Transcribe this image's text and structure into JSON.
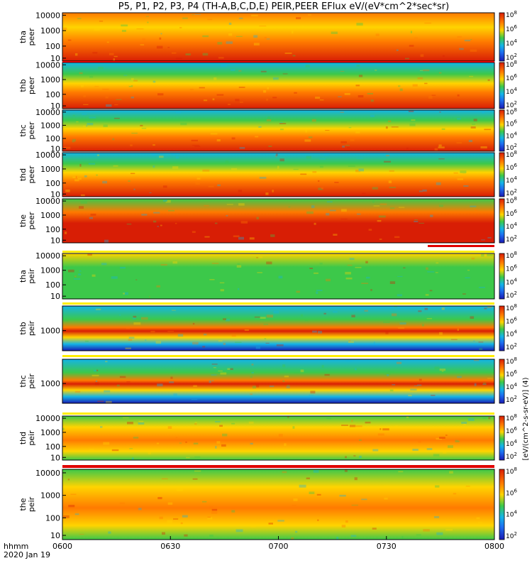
{
  "title": "P5, P1, P2, P3, P4 (TH-A,B,C,D,E) PEIR,PEER EFlux eV/(eV*cm^2*sec*sr)",
  "time_label_1": "hhmm",
  "time_label_2": "2020 Jan 19",
  "colorbar_unit_label": "[eV/(cm^2-s-sr-eV)] (4)",
  "colors": {
    "high": "#d81e05",
    "mid_high": "#ff7a00",
    "mid": "#ffd400",
    "mid_low": "#3cc84a",
    "low": "#14b4e6",
    "lowest": "#1a1ab4",
    "bar_red": "#e00000",
    "bar_yellow": "#ffee00"
  },
  "chart_data": [
    {
      "type": "heatmap",
      "panel": "tha peer",
      "ylabel": [
        "tha",
        "peer"
      ],
      "yscale": "log",
      "yticks": [
        "10000",
        "1000",
        "100",
        "10"
      ],
      "colorbar_ticks": [
        "10^8",
        "10^6",
        "10^4",
        "10^2"
      ],
      "xlim": [
        "0600",
        "0800"
      ]
    },
    {
      "type": "heatmap",
      "panel": "thb peer",
      "ylabel": [
        "thb",
        "peer"
      ],
      "yscale": "log",
      "yticks": [
        "10000",
        "1000",
        "100",
        "10"
      ],
      "colorbar_ticks": [
        "10^8",
        "10^6",
        "10^4",
        "10^2"
      ],
      "xlim": [
        "0600",
        "0800"
      ]
    },
    {
      "type": "heatmap",
      "panel": "thc peer",
      "ylabel": [
        "thc",
        "peer"
      ],
      "yscale": "log",
      "yticks": [
        "10000",
        "1000",
        "100",
        "10"
      ],
      "colorbar_ticks": [
        "10^8",
        "10^6",
        "10^4",
        "10^2"
      ],
      "xlim": [
        "0600",
        "0800"
      ]
    },
    {
      "type": "heatmap",
      "panel": "thd peer",
      "ylabel": [
        "thd",
        "peer"
      ],
      "yscale": "log",
      "yticks": [
        "10000",
        "1000",
        "100",
        "10"
      ],
      "colorbar_ticks": [
        "10^8",
        "10^6",
        "10^4",
        "10^2"
      ],
      "xlim": [
        "0600",
        "0800"
      ]
    },
    {
      "type": "heatmap",
      "panel": "the peer",
      "ylabel": [
        "the",
        "peer"
      ],
      "yscale": "log",
      "yticks": [
        "10000",
        "1000",
        "100",
        "10"
      ],
      "colorbar_ticks": [
        "10^8",
        "10^6",
        "10^4",
        "10^2"
      ],
      "xlim": [
        "0600",
        "0800"
      ]
    },
    {
      "type": "heatmap",
      "panel": "tha peir",
      "ylabel": [
        "tha",
        "peir"
      ],
      "yscale": "log",
      "yticks": [
        "10000",
        "1000",
        "100",
        "10"
      ],
      "colorbar_ticks": [
        "10^8",
        "10^6",
        "10^4",
        "10^2"
      ],
      "xlim": [
        "0600",
        "0800"
      ]
    },
    {
      "type": "heatmap",
      "panel": "thb peir",
      "ylabel": [
        "thb",
        "peir"
      ],
      "yscale": "log",
      "yticks": [
        "1000"
      ],
      "colorbar_ticks": [
        "10^8",
        "10^6",
        "10^4",
        "10^2"
      ],
      "xlim": [
        "0600",
        "0800"
      ]
    },
    {
      "type": "heatmap",
      "panel": "thc peir",
      "ylabel": [
        "thc",
        "peir"
      ],
      "yscale": "log",
      "yticks": [
        "1000"
      ],
      "colorbar_ticks": [
        "10^8",
        "10^6",
        "10^4",
        "10^2"
      ],
      "xlim": [
        "0600",
        "0800"
      ]
    },
    {
      "type": "heatmap",
      "panel": "thd peir",
      "ylabel": [
        "thd",
        "peir"
      ],
      "yscale": "log",
      "yticks": [
        "10000",
        "1000",
        "100",
        "10"
      ],
      "colorbar_ticks": [
        "10^8",
        "10^6",
        "10^4",
        "10^2"
      ],
      "xlim": [
        "0600",
        "0800"
      ]
    },
    {
      "type": "heatmap",
      "panel": "the peir",
      "ylabel": [
        "the",
        "peir"
      ],
      "yscale": "log",
      "yticks": [
        "10000",
        "1000",
        "100",
        "10"
      ],
      "colorbar_ticks": [
        "10^8",
        "10^6",
        "10^4",
        "10^2"
      ],
      "xlim": [
        "0600",
        "0800"
      ]
    }
  ],
  "xaxis": {
    "ticks": [
      "0600",
      "0630",
      "0700",
      "0730",
      "0800"
    ]
  }
}
